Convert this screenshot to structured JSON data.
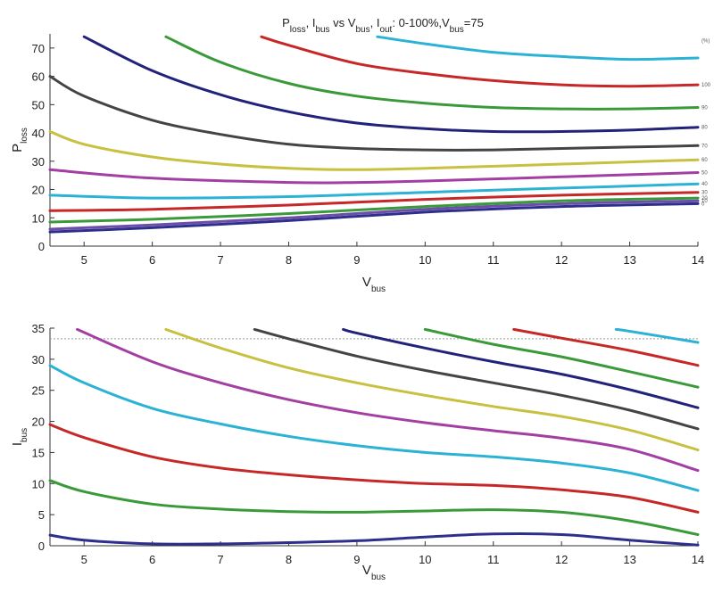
{
  "title": {
    "parts": [
      {
        "text": "P",
        "sub": false
      },
      {
        "text": "loss",
        "sub": true
      },
      {
        "text": ", I",
        "sub": false
      },
      {
        "text": "bus",
        "sub": true
      },
      {
        "text": " vs V",
        "sub": false
      },
      {
        "text": "bus",
        "sub": true
      },
      {
        "text": ", I",
        "sub": false
      },
      {
        "text": "out",
        "sub": true
      },
      {
        "text": ": 0-100%,V",
        "sub": false
      },
      {
        "text": "bus",
        "sub": true
      },
      {
        "text": "=75",
        "sub": false
      }
    ]
  },
  "chart_data": [
    {
      "type": "line",
      "xlabel": {
        "main": "V",
        "sub": "bus"
      },
      "ylabel": {
        "main": "P",
        "sub": "loss"
      },
      "xlim": [
        4.5,
        14
      ],
      "ylim": [
        0,
        75
      ],
      "xticks": [
        5,
        6,
        7,
        8,
        9,
        10,
        11,
        12,
        13,
        14
      ],
      "yticks": [
        0,
        10,
        20,
        30,
        40,
        50,
        60,
        70
      ],
      "grid": false,
      "legend": "right",
      "label_header": "(%)",
      "series": [
        {
          "label": "0",
          "color": "#2e2e8c",
          "x": [
            4.5,
            6,
            8,
            10,
            12,
            14
          ],
          "y": [
            5,
            6.5,
            9,
            12,
            14,
            15
          ]
        },
        {
          "label": "10",
          "color": "#6b4ea8",
          "x": [
            4.5,
            6,
            8,
            10,
            12,
            14
          ],
          "y": [
            6,
            7.5,
            10,
            13,
            15,
            16
          ]
        },
        {
          "label": "20",
          "color": "#3a9a3a",
          "x": [
            4.5,
            6,
            8,
            10,
            12,
            14
          ],
          "y": [
            8.5,
            9.5,
            11.5,
            14,
            16,
            17
          ]
        },
        {
          "label": "30",
          "color": "#c62828",
          "x": [
            4.5,
            6,
            8,
            10,
            12,
            14
          ],
          "y": [
            12.5,
            13,
            14.5,
            16.5,
            18,
            19
          ]
        },
        {
          "label": "40",
          "color": "#2bb2d4",
          "x": [
            4.5,
            6,
            8,
            10,
            12,
            14
          ],
          "y": [
            18,
            17,
            17.5,
            19,
            20.5,
            22
          ]
        },
        {
          "label": "50",
          "color": "#a33ea3",
          "x": [
            4.5,
            6,
            8,
            9,
            10,
            12,
            14
          ],
          "y": [
            27,
            24,
            22.5,
            22.5,
            23,
            24.5,
            26
          ]
        },
        {
          "label": "60",
          "color": "#c8c040",
          "x": [
            4.5,
            5,
            6,
            7,
            8,
            9,
            10,
            12,
            14
          ],
          "y": [
            40.5,
            36,
            31.5,
            29,
            27.5,
            27,
            27.5,
            29,
            30.5
          ]
        },
        {
          "label": "70",
          "color": "#444444",
          "x": [
            4.5,
            5,
            6,
            7,
            8,
            9,
            10,
            11,
            12,
            13,
            14
          ],
          "y": [
            60,
            53,
            44.5,
            39.5,
            36,
            34.5,
            34,
            34,
            34.5,
            35,
            35.5
          ]
        },
        {
          "label": "80",
          "color": "#22227a",
          "x": [
            5,
            6,
            7,
            8,
            9,
            10,
            11,
            12,
            13,
            14
          ],
          "y": [
            74,
            62,
            53.5,
            47.5,
            43.5,
            41.5,
            40.5,
            40.5,
            41,
            42
          ]
        },
        {
          "label": "90",
          "color": "#3a9a3a",
          "x": [
            6.2,
            7,
            8,
            9,
            10,
            11,
            12,
            13,
            14
          ],
          "y": [
            74,
            65,
            57.5,
            53,
            50.5,
            49,
            48.5,
            48.5,
            49
          ]
        },
        {
          "label": "100",
          "color": "#c62828",
          "x": [
            7.6,
            8,
            9,
            10,
            11,
            12,
            13,
            14
          ],
          "y": [
            74,
            71,
            64.5,
            61,
            58.5,
            57,
            56.5,
            57
          ]
        },
        {
          "label": "",
          "color": "#2bb2d4",
          "x": [
            9.3,
            10,
            11,
            12,
            13,
            14
          ],
          "y": [
            74,
            71.5,
            68.5,
            67,
            66,
            66.5
          ]
        }
      ]
    },
    {
      "type": "line",
      "xlabel": {
        "main": "V",
        "sub": "bus"
      },
      "ylabel": {
        "main": "I",
        "sub": "bus"
      },
      "xlim": [
        4.5,
        14
      ],
      "ylim": [
        0,
        35
      ],
      "xticks": [
        5,
        6,
        7,
        8,
        9,
        10,
        11,
        12,
        13,
        14
      ],
      "yticks": [
        0,
        5,
        10,
        15,
        20,
        25,
        30,
        35
      ],
      "grid": false,
      "reference_line": 33.3,
      "series": [
        {
          "color": "#2e2e8c",
          "x": [
            4.5,
            5,
            6,
            7,
            8,
            9,
            10,
            11,
            12,
            13,
            14
          ],
          "y": [
            1.7,
            0.9,
            0.3,
            0.3,
            0.5,
            0.8,
            1.4,
            1.9,
            1.8,
            0.9,
            0.1
          ]
        },
        {
          "color": "#3a9a3a",
          "x": [
            4.5,
            5,
            6,
            7,
            8,
            9,
            10,
            11,
            12,
            13,
            14
          ],
          "y": [
            10.5,
            8.7,
            6.7,
            5.9,
            5.5,
            5.4,
            5.6,
            5.8,
            5.4,
            4.0,
            1.8
          ]
        },
        {
          "color": "#c62828",
          "x": [
            4.5,
            5,
            6,
            7,
            8,
            9,
            10,
            11,
            12,
            13,
            14
          ],
          "y": [
            19.5,
            17.4,
            14.3,
            12.5,
            11.4,
            10.6,
            10.0,
            9.7,
            9.0,
            7.8,
            5.4
          ]
        },
        {
          "color": "#2bb2d4",
          "x": [
            4.5,
            5,
            6,
            7,
            8,
            9,
            10,
            11,
            12,
            13,
            14
          ],
          "y": [
            29,
            26.2,
            22.1,
            19.6,
            17.6,
            16.1,
            15.0,
            14.3,
            13.3,
            11.7,
            8.9
          ]
        },
        {
          "color": "#a33ea3",
          "x": [
            4.9,
            6,
            7,
            8,
            9,
            10,
            11,
            12,
            13,
            14
          ],
          "y": [
            34.8,
            29.6,
            26.2,
            23.5,
            21.4,
            19.8,
            18.5,
            17.3,
            15.5,
            12.1
          ]
        },
        {
          "color": "#c8c040",
          "x": [
            6.2,
            7,
            8,
            9,
            10,
            11,
            12,
            13,
            14
          ],
          "y": [
            34.8,
            31.8,
            28.6,
            26.2,
            24.2,
            22.4,
            20.8,
            18.6,
            15.4
          ]
        },
        {
          "color": "#444444",
          "x": [
            7.5,
            8,
            9,
            10,
            11,
            12,
            13,
            14
          ],
          "y": [
            34.8,
            33.3,
            30.5,
            28.2,
            26.2,
            24.2,
            21.8,
            18.8
          ]
        },
        {
          "color": "#22227a",
          "x": [
            8.8,
            9,
            10,
            11,
            12,
            13,
            14
          ],
          "y": [
            34.8,
            34.2,
            31.8,
            29.6,
            27.6,
            25.1,
            22.2
          ]
        },
        {
          "color": "#3a9a3a",
          "x": [
            10,
            11,
            12,
            13,
            14
          ],
          "y": [
            34.8,
            32.4,
            30.4,
            28.0,
            25.5
          ]
        },
        {
          "color": "#c62828",
          "x": [
            11.3,
            12,
            13,
            14
          ],
          "y": [
            34.8,
            33.4,
            31.4,
            29.0
          ]
        },
        {
          "color": "#2bb2d4",
          "x": [
            12.8,
            13,
            14
          ],
          "y": [
            34.8,
            34.5,
            32.7
          ]
        }
      ]
    }
  ]
}
